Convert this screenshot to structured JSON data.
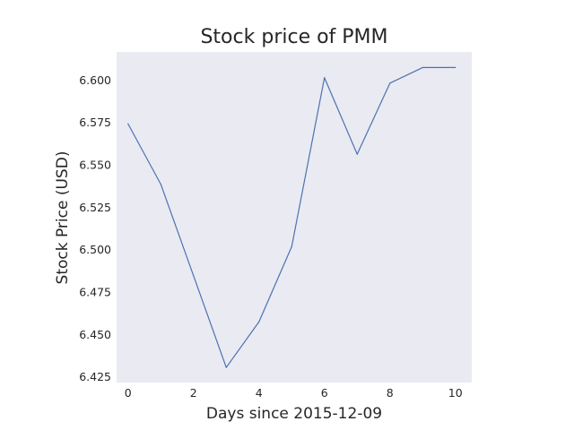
{
  "chart_data": {
    "type": "line",
    "title": "Stock price of PMM",
    "xlabel": "Days since 2015-12-09",
    "ylabel": "Stock Price (USD)",
    "x": [
      0,
      1,
      2,
      3,
      4,
      5,
      6,
      7,
      8,
      9,
      10
    ],
    "series": [
      {
        "values": [
          6.5742,
          6.5386,
          6.4846,
          6.4305,
          6.4574,
          6.5018,
          6.6014,
          6.5563,
          6.5982,
          6.6074,
          6.6074
        ]
      }
    ],
    "xlim": [
      -0.35,
      10.5
    ],
    "ylim": [
      6.4216,
      6.6166
    ],
    "xticks": [
      "0",
      "2",
      "4",
      "6",
      "8",
      "10"
    ],
    "yticks": [
      "6.425",
      "6.450",
      "6.475",
      "6.500",
      "6.525",
      "6.550",
      "6.575",
      "6.600"
    ],
    "grid": false,
    "colors": {
      "plot_background": "#eaeaf2",
      "line": "#4c72b0",
      "text": "#262626"
    }
  }
}
